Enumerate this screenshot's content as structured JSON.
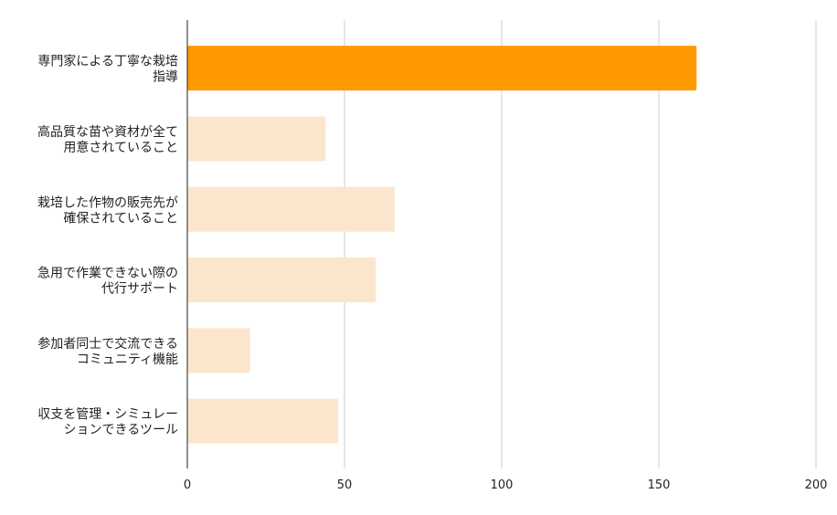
{
  "chart_data": {
    "type": "bar",
    "orientation": "horizontal",
    "categories": [
      [
        "専門家による丁寧な栽培",
        "指導"
      ],
      [
        "高品質な苗や資材が全て",
        "用意されていること"
      ],
      [
        "栽培した作物の販売先が",
        "確保されていること"
      ],
      [
        "急用で作業できない際の",
        "代行サポート"
      ],
      [
        "参加者同士で交流できる",
        "コミュニティ機能"
      ],
      [
        "収支を管理・シミュレー",
        "ションできるツール"
      ]
    ],
    "values": [
      162,
      44,
      66,
      60,
      20,
      48
    ],
    "highlight_index": 0,
    "colors": {
      "highlight": "#ff9900",
      "default": "#fce5cd",
      "grid": "#cccccc",
      "axis": "#222222"
    },
    "xlim": [
      0,
      200
    ],
    "xticks": [
      0,
      50,
      100,
      150,
      200
    ],
    "grid": true,
    "title": "",
    "xlabel": "",
    "ylabel": ""
  }
}
